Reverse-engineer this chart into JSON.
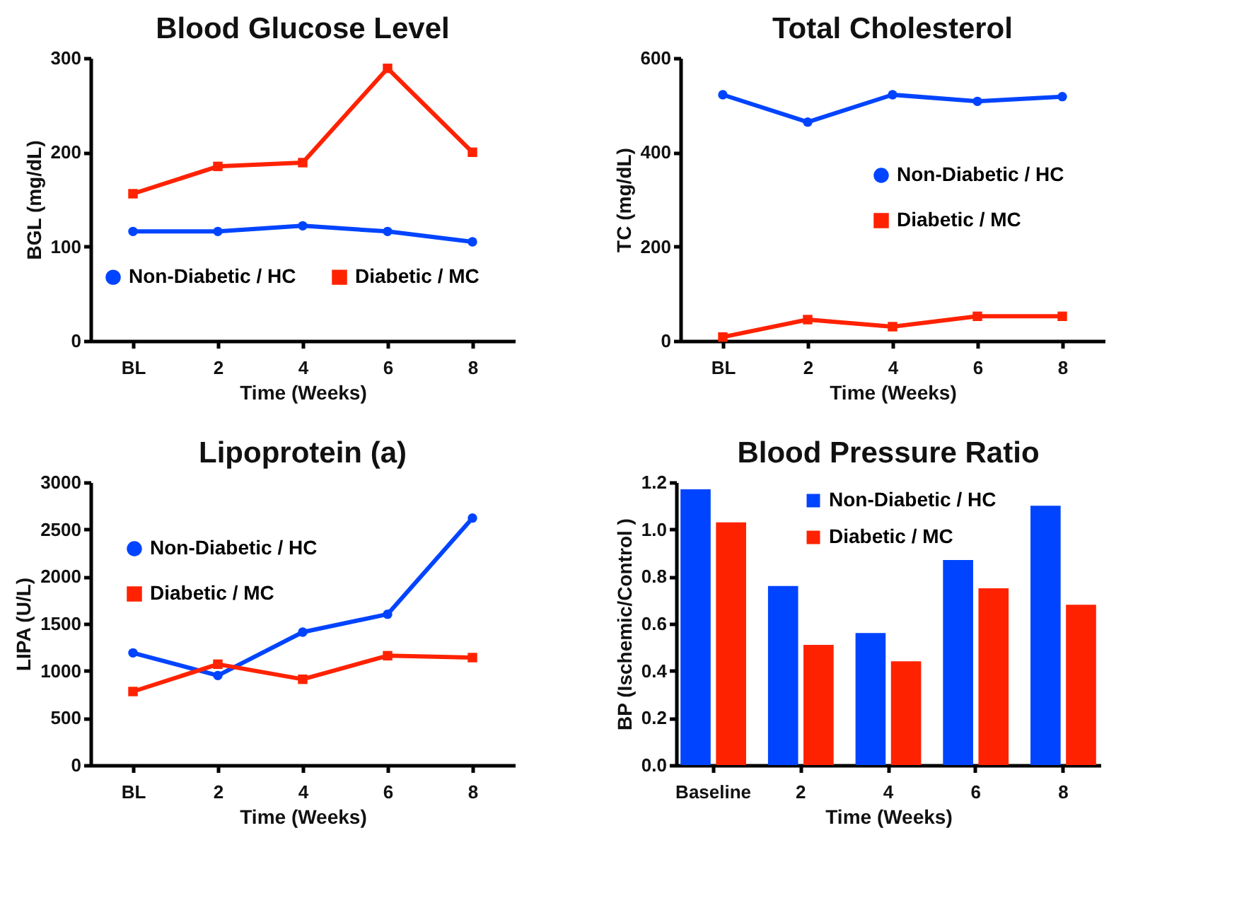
{
  "chart_data": [
    {
      "type": "line",
      "title": "Blood Glucose Level",
      "xlabel": "Time (Weeks)",
      "ylabel": "BGL (mg/dL)",
      "categories": [
        "BL",
        "2",
        "4",
        "6",
        "8"
      ],
      "ylim": [
        0,
        300
      ],
      "yticks": [
        0,
        100,
        200,
        300
      ],
      "grid": false,
      "legend": "bottom",
      "series": [
        {
          "name": "Non-Diabetic / HC",
          "color": "#0044ff",
          "marker": "circle",
          "values": [
            116,
            116,
            122,
            116,
            105
          ]
        },
        {
          "name": "Diabetic / MC",
          "color": "#ff2200",
          "marker": "square",
          "values": [
            156,
            185,
            189,
            289,
            200
          ]
        }
      ]
    },
    {
      "type": "line",
      "title": "Total Cholesterol",
      "xlabel": "Time (Weeks)",
      "ylabel": "TC (mg/dL)",
      "categories": [
        "BL",
        "2",
        "4",
        "6",
        "8"
      ],
      "ylim": [
        0,
        600
      ],
      "yticks": [
        0,
        200,
        400,
        600
      ],
      "grid": false,
      "legend": "right",
      "series": [
        {
          "name": "Non-Diabetic / HC",
          "color": "#0044ff",
          "marker": "circle",
          "values": [
            522,
            464,
            522,
            508,
            518
          ]
        },
        {
          "name": "Diabetic / MC",
          "color": "#ff2200",
          "marker": "square",
          "values": [
            8,
            45,
            30,
            52,
            52
          ]
        }
      ]
    },
    {
      "type": "line",
      "title": "Lipoprotein (a)",
      "xlabel": "Time (Weeks)",
      "ylabel": "LIPA (U/L)",
      "categories": [
        "BL",
        "2",
        "4",
        "6",
        "8"
      ],
      "ylim": [
        0,
        3000
      ],
      "yticks": [
        0,
        500,
        1000,
        1500,
        2000,
        2500,
        3000
      ],
      "grid": false,
      "legend": "top left",
      "series": [
        {
          "name": "Non-Diabetic / HC",
          "color": "#0044ff",
          "marker": "circle",
          "values": [
            1190,
            950,
            1410,
            1600,
            2620
          ]
        },
        {
          "name": "Diabetic / MC",
          "color": "#ff2200",
          "marker": "square",
          "values": [
            780,
            1070,
            910,
            1160,
            1140
          ]
        }
      ]
    },
    {
      "type": "bar",
      "title": "Blood Pressure Ratio",
      "xlabel": "Time (Weeks)",
      "ylabel": "BP (Ischemic/Control )",
      "categories": [
        "Baseline",
        "2",
        "4",
        "6",
        "8"
      ],
      "ylim": [
        0,
        1.2
      ],
      "yticks": [
        {
          "value": 0,
          "label": "0.0"
        },
        0.2,
        0.4,
        0.6,
        0.8,
        {
          "value": 1,
          "label": "1.0"
        },
        1.2
      ],
      "grid": false,
      "legend": "top",
      "series": [
        {
          "name": "Non-Diabetic / HC",
          "color": "#0044ff",
          "values": [
            1.17,
            0.76,
            0.56,
            0.87,
            1.1
          ]
        },
        {
          "name": "Diabetic / MC",
          "color": "#ff2200",
          "values": [
            1.03,
            0.51,
            0.44,
            0.75,
            0.68
          ]
        }
      ]
    }
  ]
}
